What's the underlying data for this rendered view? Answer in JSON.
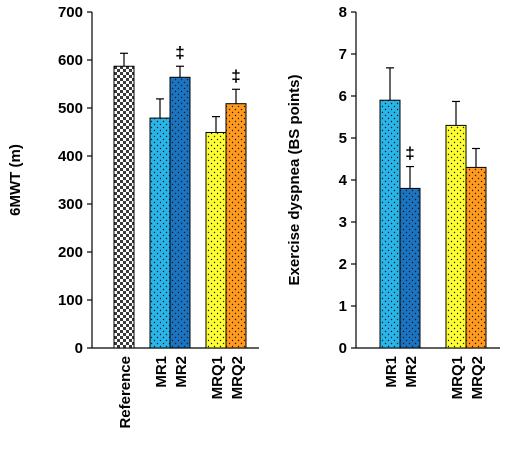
{
  "chart_data": [
    {
      "type": "bar",
      "ylabel": "6MWT (m)",
      "ylim": [
        0,
        700
      ],
      "yticks": [
        0,
        100,
        200,
        300,
        400,
        500,
        600,
        700
      ],
      "grid": false,
      "categories": [
        "Reference",
        "MR1",
        "MR2",
        "MRQ1",
        "MRQ2"
      ],
      "values": [
        587,
        479,
        564,
        449,
        509
      ],
      "errors": [
        27,
        40,
        23,
        33,
        30
      ],
      "annotations": [
        "",
        "",
        "‡",
        "",
        "‡"
      ],
      "colors": [
        "#bfbfbf",
        "#29b5ea",
        "#1b74c2",
        "#ffff33",
        "#ff9a1e"
      ],
      "patterns": [
        "checker",
        "dots",
        "dots",
        "dots",
        "dots"
      ]
    },
    {
      "type": "bar",
      "ylabel": "Exercise dyspnea (BS points)",
      "ylim": [
        0,
        8
      ],
      "yticks": [
        0,
        1,
        2,
        3,
        4,
        5,
        6,
        7,
        8
      ],
      "grid": false,
      "categories": [
        "MR1",
        "MR2",
        "MRQ1",
        "MRQ2"
      ],
      "values": [
        5.9,
        3.8,
        5.3,
        4.3
      ],
      "errors": [
        0.77,
        0.52,
        0.57,
        0.45
      ],
      "annotations": [
        "",
        "‡",
        "",
        ""
      ],
      "colors": [
        "#29b5ea",
        "#1b74c2",
        "#ffff33",
        "#ff9a1e"
      ],
      "patterns": [
        "dots",
        "dots",
        "dots",
        "dots"
      ]
    }
  ]
}
